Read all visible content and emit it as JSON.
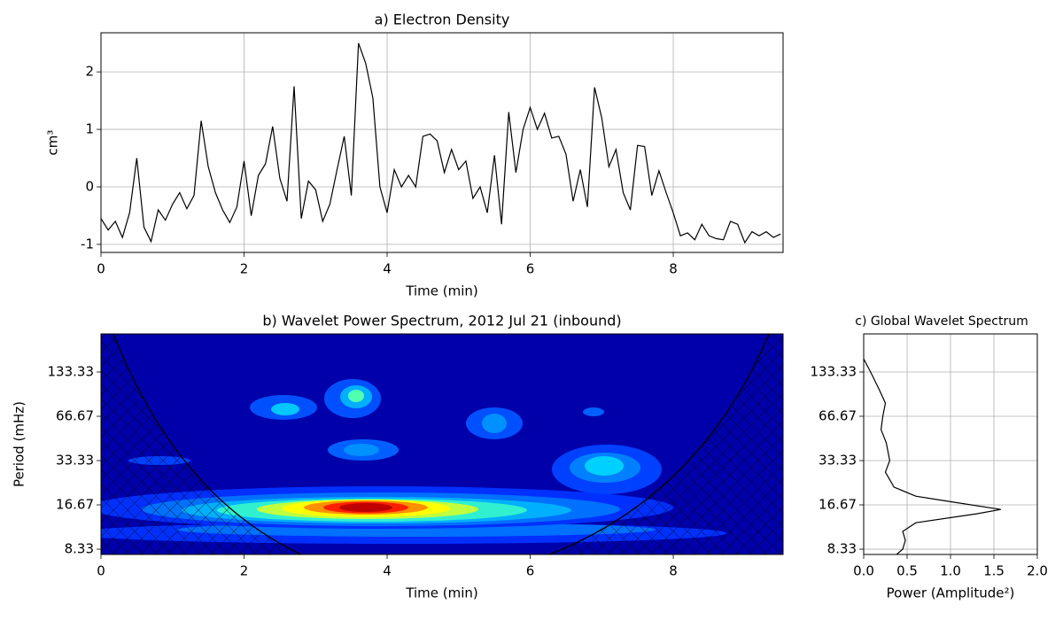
{
  "chart_data": [
    {
      "type": "line",
      "title": "a) Electron Density",
      "xlabel": "Time (min)",
      "ylabel": "cm³",
      "x": [
        0,
        0.1,
        0.2,
        0.3,
        0.4,
        0.5,
        0.6,
        0.7,
        0.8,
        0.9,
        1,
        1.1,
        1.2,
        1.3,
        1.4,
        1.5,
        1.6,
        1.7,
        1.8,
        1.9,
        2,
        2.1,
        2.2,
        2.3,
        2.4,
        2.5,
        2.6,
        2.7,
        2.8,
        2.9,
        3,
        3.1,
        3.2,
        3.3,
        3.4,
        3.5,
        3.6,
        3.7,
        3.8,
        3.9,
        4,
        4.1,
        4.2,
        4.3,
        4.4,
        4.5,
        4.6,
        4.7,
        4.8,
        4.9,
        5,
        5.1,
        5.2,
        5.3,
        5.4,
        5.5,
        5.6,
        5.7,
        5.8,
        5.9,
        6,
        6.1,
        6.2,
        6.3,
        6.4,
        6.5,
        6.6,
        6.7,
        6.8,
        6.9,
        7,
        7.1,
        7.2,
        7.3,
        7.4,
        7.5,
        7.6,
        7.7,
        7.8,
        7.9,
        8,
        8.1,
        8.2,
        8.3,
        8.4,
        8.5,
        8.6,
        8.7,
        8.8,
        8.9,
        9,
        9.1,
        9.2,
        9.3,
        9.4,
        9.5
      ],
      "values": [
        -0.55,
        -0.75,
        -0.6,
        -0.88,
        -0.45,
        0.5,
        -0.7,
        -0.95,
        -0.4,
        -0.58,
        -0.3,
        -0.1,
        -0.38,
        -0.15,
        1.15,
        0.35,
        -0.1,
        -0.4,
        -0.62,
        -0.35,
        0.45,
        -0.5,
        0.2,
        0.4,
        1.05,
        0.15,
        -0.25,
        1.75,
        -0.55,
        0.1,
        -0.05,
        -0.6,
        -0.3,
        0.3,
        0.88,
        -0.15,
        2.5,
        2.15,
        1.55,
        0.0,
        -0.45,
        0.3,
        0.0,
        0.2,
        0.0,
        0.88,
        0.92,
        0.8,
        0.25,
        0.65,
        0.3,
        0.45,
        -0.2,
        0.0,
        -0.45,
        0.55,
        -0.65,
        1.3,
        0.25,
        1.0,
        1.38,
        1.0,
        1.28,
        0.85,
        0.88,
        0.57,
        -0.25,
        0.3,
        -0.35,
        1.73,
        1.2,
        0.35,
        0.65,
        -0.1,
        -0.4,
        0.72,
        0.7,
        -0.15,
        0.28,
        -0.1,
        -0.45,
        -0.85,
        -0.8,
        -0.92,
        -0.65,
        -0.85,
        -0.9,
        -0.92,
        -0.6,
        -0.65,
        -0.97,
        -0.78,
        -0.85,
        -0.78,
        -0.88,
        -0.82
      ],
      "color": "#000000",
      "xlim": [
        0,
        9.535
      ],
      "xticks": [
        0,
        2,
        4,
        6,
        8
      ],
      "ylim": [
        -1.14,
        2.68
      ],
      "yticks": [
        -1,
        0,
        1,
        2
      ],
      "grid": true
    },
    {
      "type": "contour",
      "title": "b) Wavelet Power Spectrum, 2012 Jul 21 (inbound)",
      "xlabel": "Time (min)",
      "ylabel": "Period (mHz)",
      "xlim": [
        0,
        9.535
      ],
      "xticks": [
        0,
        2,
        4,
        6,
        8
      ],
      "ylim": [
        7.67,
        242
      ],
      "yticks": [
        8.33,
        16.67,
        33.33,
        66.67,
        133.33
      ],
      "log_y": true,
      "grid": false
    },
    {
      "type": "line",
      "orientation": "vertical",
      "title": "c) Global Wavelet Spectrum",
      "xlabel": "Power (Amplitude²)",
      "color": "#000000",
      "values": [
        0.0,
        0.08,
        0.18,
        0.25,
        0.22,
        0.2,
        0.26,
        0.3,
        0.25,
        0.35,
        0.6,
        0.9,
        1.58,
        1.3,
        0.6,
        0.45,
        0.48,
        0.45,
        0.38
      ],
      "periods": [
        164,
        133.3,
        101,
        82,
        66.67,
        54.1,
        44,
        33.33,
        27.8,
        22,
        19.1,
        17.9,
        15.5,
        14.5,
        12.6,
        11,
        9.57,
        8.33,
        7.67
      ],
      "xlim": [
        0,
        2
      ],
      "xticks": [
        {
          "value": 0,
          "label": "0.0"
        },
        0.5,
        {
          "value": 1,
          "label": "1.0"
        },
        1.5,
        {
          "value": 2,
          "label": "2.0"
        }
      ],
      "ylim": [
        7.67,
        242
      ],
      "yticks": [
        8.33,
        16.67,
        33.33,
        66.67,
        133.33
      ],
      "log_y": true,
      "grid": true
    }
  ]
}
